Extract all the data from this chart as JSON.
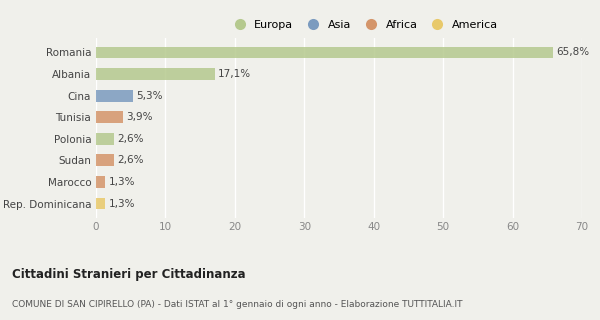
{
  "categories": [
    "Romania",
    "Albania",
    "Cina",
    "Tunisia",
    "Polonia",
    "Sudan",
    "Marocco",
    "Rep. Dominicana"
  ],
  "values": [
    65.8,
    17.1,
    5.3,
    3.9,
    2.6,
    2.6,
    1.3,
    1.3
  ],
  "labels": [
    "65,8%",
    "17,1%",
    "5,3%",
    "3,9%",
    "2,6%",
    "2,6%",
    "1,3%",
    "1,3%"
  ],
  "colors": [
    "#b5c98e",
    "#b5c98e",
    "#7b9bbf",
    "#d4956a",
    "#b5c98e",
    "#d4956a",
    "#d4956a",
    "#e8c96a"
  ],
  "legend_labels": [
    "Europa",
    "Asia",
    "Africa",
    "America"
  ],
  "legend_colors": [
    "#b5c98e",
    "#7b9bbf",
    "#d4956a",
    "#e8c96a"
  ],
  "xlim": [
    0,
    70
  ],
  "xticks": [
    0,
    10,
    20,
    30,
    40,
    50,
    60,
    70
  ],
  "title_bold": "Cittadini Stranieri per Cittadinanza",
  "subtitle": "COMUNE DI SAN CIPIRELLO (PA) - Dati ISTAT al 1° gennaio di ogni anno - Elaborazione TUTTITALIA.IT",
  "background_color": "#f0f0eb",
  "bar_height": 0.55,
  "grid_color": "#ffffff",
  "label_fontsize": 7.5,
  "ytick_fontsize": 7.5,
  "xtick_fontsize": 7.5,
  "legend_fontsize": 8.0,
  "title_fontsize": 8.5,
  "subtitle_fontsize": 6.5
}
